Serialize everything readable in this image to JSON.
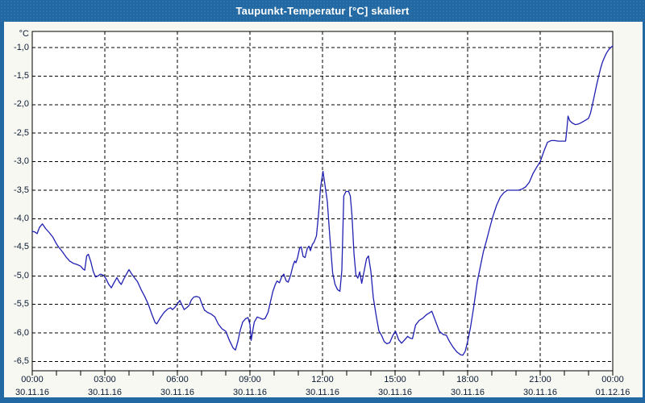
{
  "window": {
    "title": "Taupunkt-Temperatur [°C] skaliert",
    "colors": {
      "titlebar": "#2269a4",
      "frame": "#2269a4",
      "canvas_bg": "#f7f8f2",
      "plot_bg": "#ffffff",
      "plot_border": "#000000",
      "grid": "#000000",
      "line": "#2020b2",
      "label_text": "#0b1a33",
      "title_text": "#ffffff"
    }
  },
  "chart_data": {
    "type": "line",
    "title": "Taupunkt-Temperatur [°C] skaliert",
    "ylabel": "°C",
    "xlabel": "",
    "grid": "dashed",
    "legend": "none",
    "ylim": [
      -6.66,
      -0.72
    ],
    "xlim_hours": [
      0,
      24
    ],
    "yticks": [
      {
        "value": -1.0,
        "label": "-1,0"
      },
      {
        "value": -1.5,
        "label": "-1,5"
      },
      {
        "value": -2.0,
        "label": "-2,0"
      },
      {
        "value": -2.5,
        "label": "-2,5"
      },
      {
        "value": -3.0,
        "label": "-3,0"
      },
      {
        "value": -3.5,
        "label": "-3,5"
      },
      {
        "value": -4.0,
        "label": "-4,0"
      },
      {
        "value": -4.5,
        "label": "-4,5"
      },
      {
        "value": -5.0,
        "label": "-5,0"
      },
      {
        "value": -5.5,
        "label": "-5,5"
      },
      {
        "value": -6.0,
        "label": "-6,0"
      },
      {
        "value": -6.5,
        "label": "-6,5"
      }
    ],
    "xticks": [
      {
        "hour": 0,
        "time": "00:00",
        "date": "30.11.16"
      },
      {
        "hour": 3,
        "time": "03:00",
        "date": "30.11.16"
      },
      {
        "hour": 6,
        "time": "06:00",
        "date": "30.11.16"
      },
      {
        "hour": 9,
        "time": "09:00",
        "date": "30.11.16"
      },
      {
        "hour": 12,
        "time": "12:00",
        "date": "30.11.16"
      },
      {
        "hour": 15,
        "time": "15:00",
        "date": "30.11.16"
      },
      {
        "hour": 18,
        "time": "18:00",
        "date": "30.11.16"
      },
      {
        "hour": 21,
        "time": "21:00",
        "date": "30.11.16"
      },
      {
        "hour": 24,
        "time": "00:00",
        "date": "01.12.16"
      }
    ],
    "minor_tick_every_hours": 1,
    "series": [
      [
        0.0,
        -4.22
      ],
      [
        0.1,
        -4.23
      ],
      [
        0.2,
        -4.26
      ],
      [
        0.3,
        -4.15
      ],
      [
        0.42,
        -4.09
      ],
      [
        0.55,
        -4.17
      ],
      [
        0.7,
        -4.24
      ],
      [
        0.85,
        -4.32
      ],
      [
        1.0,
        -4.44
      ],
      [
        1.1,
        -4.5
      ],
      [
        1.25,
        -4.58
      ],
      [
        1.4,
        -4.67
      ],
      [
        1.55,
        -4.74
      ],
      [
        1.7,
        -4.78
      ],
      [
        1.85,
        -4.8
      ],
      [
        2.0,
        -4.83
      ],
      [
        2.1,
        -4.88
      ],
      [
        2.17,
        -4.9
      ],
      [
        2.25,
        -4.65
      ],
      [
        2.32,
        -4.62
      ],
      [
        2.42,
        -4.75
      ],
      [
        2.52,
        -4.92
      ],
      [
        2.62,
        -5.02
      ],
      [
        2.72,
        -5.0
      ],
      [
        2.82,
        -4.97
      ],
      [
        2.95,
        -4.99
      ],
      [
        3.05,
        -5.05
      ],
      [
        3.15,
        -5.14
      ],
      [
        3.27,
        -5.21
      ],
      [
        3.38,
        -5.12
      ],
      [
        3.5,
        -5.03
      ],
      [
        3.6,
        -5.11
      ],
      [
        3.68,
        -5.15
      ],
      [
        3.78,
        -5.06
      ],
      [
        3.88,
        -4.98
      ],
      [
        4.0,
        -4.89
      ],
      [
        4.1,
        -4.96
      ],
      [
        4.22,
        -5.03
      ],
      [
        4.35,
        -5.1
      ],
      [
        4.5,
        -5.24
      ],
      [
        4.65,
        -5.36
      ],
      [
        4.8,
        -5.5
      ],
      [
        4.95,
        -5.68
      ],
      [
        5.08,
        -5.82
      ],
      [
        5.15,
        -5.84
      ],
      [
        5.3,
        -5.73
      ],
      [
        5.45,
        -5.64
      ],
      [
        5.6,
        -5.58
      ],
      [
        5.72,
        -5.56
      ],
      [
        5.8,
        -5.59
      ],
      [
        5.9,
        -5.55
      ],
      [
        6.0,
        -5.49
      ],
      [
        6.1,
        -5.43
      ],
      [
        6.2,
        -5.52
      ],
      [
        6.28,
        -5.59
      ],
      [
        6.38,
        -5.56
      ],
      [
        6.48,
        -5.52
      ],
      [
        6.58,
        -5.42
      ],
      [
        6.68,
        -5.37
      ],
      [
        6.8,
        -5.36
      ],
      [
        6.92,
        -5.38
      ],
      [
        7.02,
        -5.5
      ],
      [
        7.12,
        -5.6
      ],
      [
        7.25,
        -5.64
      ],
      [
        7.4,
        -5.67
      ],
      [
        7.55,
        -5.72
      ],
      [
        7.7,
        -5.85
      ],
      [
        7.85,
        -5.93
      ],
      [
        8.0,
        -5.97
      ],
      [
        8.15,
        -6.13
      ],
      [
        8.3,
        -6.26
      ],
      [
        8.4,
        -6.3
      ],
      [
        8.5,
        -6.15
      ],
      [
        8.6,
        -5.95
      ],
      [
        8.7,
        -5.81
      ],
      [
        8.82,
        -5.75
      ],
      [
        8.92,
        -5.73
      ],
      [
        9.0,
        -5.85
      ],
      [
        9.05,
        -6.13
      ],
      [
        9.12,
        -5.95
      ],
      [
        9.18,
        -5.81
      ],
      [
        9.3,
        -5.72
      ],
      [
        9.42,
        -5.74
      ],
      [
        9.52,
        -5.76
      ],
      [
        9.62,
        -5.75
      ],
      [
        9.75,
        -5.64
      ],
      [
        9.85,
        -5.45
      ],
      [
        9.95,
        -5.27
      ],
      [
        10.05,
        -5.15
      ],
      [
        10.12,
        -5.09
      ],
      [
        10.22,
        -5.12
      ],
      [
        10.32,
        -5.01
      ],
      [
        10.4,
        -4.97
      ],
      [
        10.5,
        -5.09
      ],
      [
        10.58,
        -5.11
      ],
      [
        10.68,
        -4.99
      ],
      [
        10.78,
        -4.82
      ],
      [
        10.85,
        -4.74
      ],
      [
        10.9,
        -4.77
      ],
      [
        10.97,
        -4.68
      ],
      [
        11.05,
        -4.52
      ],
      [
        11.12,
        -4.49
      ],
      [
        11.2,
        -4.66
      ],
      [
        11.28,
        -4.68
      ],
      [
        11.37,
        -4.52
      ],
      [
        11.44,
        -4.48
      ],
      [
        11.5,
        -4.56
      ],
      [
        11.58,
        -4.45
      ],
      [
        11.65,
        -4.41
      ],
      [
        11.75,
        -4.3
      ],
      [
        11.83,
        -3.95
      ],
      [
        11.92,
        -3.45
      ],
      [
        12.02,
        -3.17
      ],
      [
        12.1,
        -3.4
      ],
      [
        12.2,
        -3.7
      ],
      [
        12.3,
        -4.3
      ],
      [
        12.42,
        -4.95
      ],
      [
        12.52,
        -5.15
      ],
      [
        12.62,
        -5.24
      ],
      [
        12.72,
        -5.27
      ],
      [
        12.8,
        -4.9
      ],
      [
        12.88,
        -3.6
      ],
      [
        12.97,
        -3.52
      ],
      [
        13.08,
        -3.52
      ],
      [
        13.15,
        -3.6
      ],
      [
        13.22,
        -3.95
      ],
      [
        13.3,
        -4.6
      ],
      [
        13.38,
        -4.98
      ],
      [
        13.46,
        -5.04
      ],
      [
        13.54,
        -4.93
      ],
      [
        13.62,
        -5.13
      ],
      [
        13.72,
        -4.92
      ],
      [
        13.82,
        -4.7
      ],
      [
        13.9,
        -4.65
      ],
      [
        14.0,
        -4.92
      ],
      [
        14.1,
        -5.38
      ],
      [
        14.22,
        -5.7
      ],
      [
        14.33,
        -5.96
      ],
      [
        14.45,
        -6.05
      ],
      [
        14.55,
        -6.15
      ],
      [
        14.66,
        -6.19
      ],
      [
        14.78,
        -6.17
      ],
      [
        14.9,
        -6.05
      ],
      [
        15.02,
        -5.97
      ],
      [
        15.15,
        -6.12
      ],
      [
        15.27,
        -6.18
      ],
      [
        15.4,
        -6.12
      ],
      [
        15.52,
        -6.06
      ],
      [
        15.62,
        -6.09
      ],
      [
        15.72,
        -6.1
      ],
      [
        15.85,
        -5.86
      ],
      [
        16.0,
        -5.78
      ],
      [
        16.15,
        -5.74
      ],
      [
        16.3,
        -5.68
      ],
      [
        16.45,
        -5.64
      ],
      [
        16.52,
        -5.62
      ],
      [
        16.67,
        -5.79
      ],
      [
        16.83,
        -5.97
      ],
      [
        17.0,
        -6.03
      ],
      [
        17.12,
        -6.04
      ],
      [
        17.25,
        -6.15
      ],
      [
        17.4,
        -6.25
      ],
      [
        17.55,
        -6.33
      ],
      [
        17.7,
        -6.38
      ],
      [
        17.8,
        -6.39
      ],
      [
        17.9,
        -6.32
      ],
      [
        18.0,
        -6.15
      ],
      [
        18.12,
        -5.9
      ],
      [
        18.25,
        -5.55
      ],
      [
        18.4,
        -5.1
      ],
      [
        18.52,
        -4.85
      ],
      [
        18.65,
        -4.58
      ],
      [
        18.78,
        -4.38
      ],
      [
        18.92,
        -4.15
      ],
      [
        19.05,
        -3.95
      ],
      [
        19.2,
        -3.76
      ],
      [
        19.35,
        -3.62
      ],
      [
        19.5,
        -3.54
      ],
      [
        19.65,
        -3.5
      ],
      [
        19.8,
        -3.5
      ],
      [
        19.95,
        -3.5
      ],
      [
        20.1,
        -3.5
      ],
      [
        20.25,
        -3.48
      ],
      [
        20.4,
        -3.44
      ],
      [
        20.55,
        -3.36
      ],
      [
        20.7,
        -3.21
      ],
      [
        20.85,
        -3.1
      ],
      [
        21.0,
        -3.0
      ],
      [
        21.15,
        -2.82
      ],
      [
        21.3,
        -2.66
      ],
      [
        21.45,
        -2.63
      ],
      [
        21.6,
        -2.63
      ],
      [
        21.75,
        -2.64
      ],
      [
        21.9,
        -2.64
      ],
      [
        22.05,
        -2.64
      ],
      [
        22.1,
        -2.45
      ],
      [
        22.15,
        -2.2
      ],
      [
        22.22,
        -2.28
      ],
      [
        22.32,
        -2.32
      ],
      [
        22.45,
        -2.35
      ],
      [
        22.58,
        -2.34
      ],
      [
        22.72,
        -2.31
      ],
      [
        22.85,
        -2.28
      ],
      [
        23.0,
        -2.24
      ],
      [
        23.08,
        -2.15
      ],
      [
        23.17,
        -1.98
      ],
      [
        23.25,
        -1.82
      ],
      [
        23.33,
        -1.66
      ],
      [
        23.42,
        -1.5
      ],
      [
        23.5,
        -1.36
      ],
      [
        23.58,
        -1.25
      ],
      [
        23.67,
        -1.16
      ],
      [
        23.75,
        -1.09
      ],
      [
        23.83,
        -1.04
      ],
      [
        23.92,
        -1.0
      ],
      [
        24.0,
        -0.97
      ]
    ]
  }
}
